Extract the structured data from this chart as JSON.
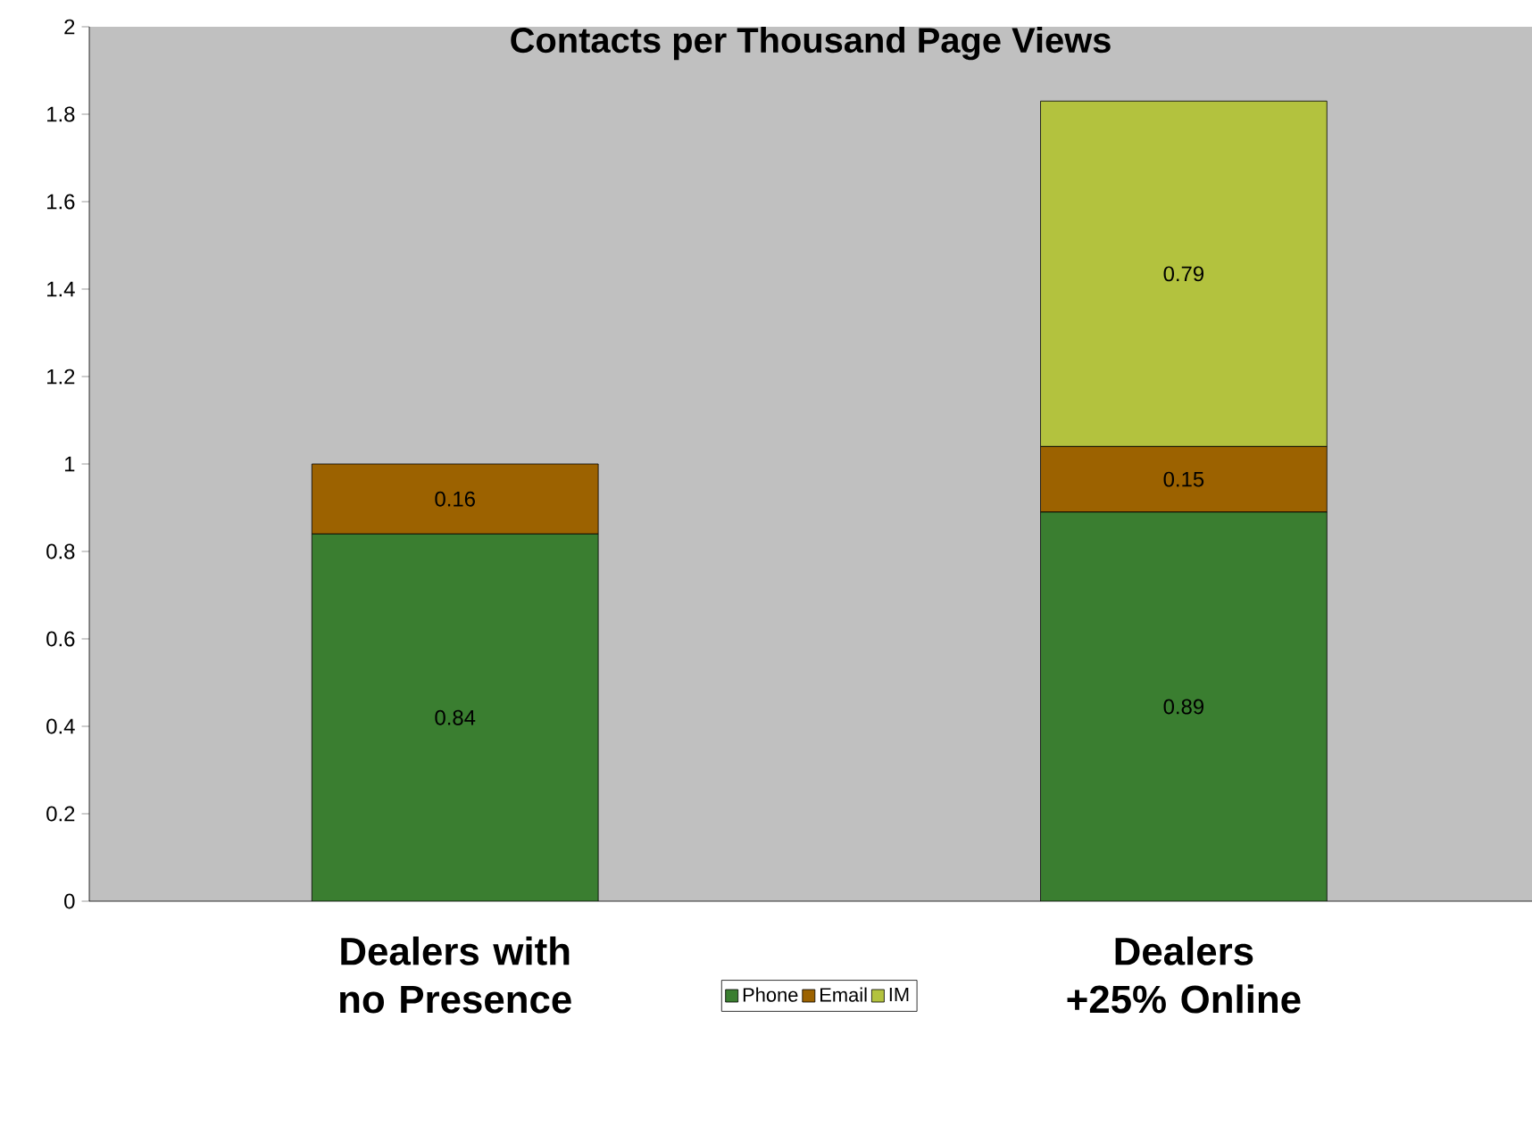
{
  "chart_data": {
    "type": "bar",
    "title": "Contacts per Thousand Page Views",
    "stacked": true,
    "categories": [
      "Dealers with no Presence",
      "Dealers +25% Online"
    ],
    "series": [
      {
        "name": "Phone",
        "color": "#3a7e30",
        "values": [
          0.84,
          0.89
        ]
      },
      {
        "name": "Email",
        "color": "#9c6200",
        "values": [
          0.16,
          0.15
        ]
      },
      {
        "name": "IM",
        "color": "#b3c23e",
        "values": [
          null,
          0.79
        ]
      }
    ],
    "ylim": [
      0,
      2
    ],
    "yticks": [
      0,
      0.2,
      0.4,
      0.6,
      0.8,
      1,
      1.2,
      1.4,
      1.6,
      1.8,
      2
    ],
    "data_labels": true,
    "legend": "bottom",
    "grid": false
  }
}
